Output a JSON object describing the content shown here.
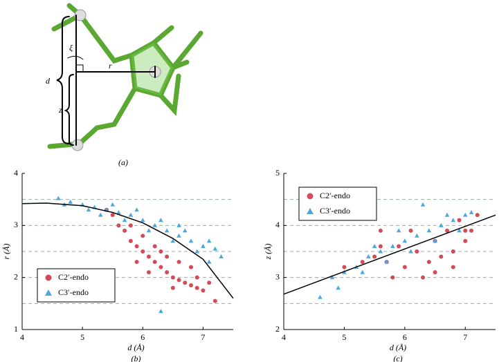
{
  "diagram": {
    "d_label": "d",
    "z_label": "z",
    "r_label": "r",
    "xi_label": "ξ",
    "caption": "(a)"
  },
  "chart_data": [
    {
      "type": "scatter",
      "caption": "(b)",
      "xlabel": "d (Å)",
      "ylabel": "r (Å)",
      "xlim": [
        4,
        7.5
      ],
      "xticks": [
        4,
        5,
        6,
        7
      ],
      "ylim": [
        1,
        4
      ],
      "yticks": [
        1,
        2,
        3,
        4
      ],
      "ygrid": [
        1.5,
        2,
        2.5,
        3,
        3.5
      ],
      "legend": "lower left",
      "series": [
        {
          "name": "C2′-endo",
          "color": "#d24b57",
          "marker": "circle",
          "x": [
            5.5,
            5.6,
            5.7,
            5.8,
            5.9,
            6.0,
            6.1,
            6.2,
            6.3,
            6.4,
            6.5,
            6.6,
            6.7,
            6.8,
            6.9,
            7.0,
            7.2,
            6.0,
            6.2,
            6.4,
            6.6,
            6.8,
            5.8,
            6.1,
            6.5,
            6.9,
            7.1,
            5.4,
            5.9,
            6.3
          ],
          "values": [
            3.2,
            3.0,
            2.9,
            2.7,
            2.6,
            2.5,
            2.4,
            2.3,
            2.2,
            2.1,
            2.0,
            1.95,
            1.9,
            1.85,
            1.8,
            1.75,
            1.55,
            2.8,
            2.6,
            2.4,
            2.3,
            2.2,
            3.0,
            2.1,
            1.8,
            2.0,
            1.9,
            3.3,
            2.3,
            2.5
          ]
        },
        {
          "name": "C3′-endo",
          "color": "#4ea8e0",
          "marker": "triangle",
          "x": [
            4.6,
            4.8,
            5.0,
            5.2,
            5.4,
            5.6,
            5.8,
            6.0,
            6.2,
            6.4,
            6.6,
            6.8,
            7.0,
            7.2,
            5.1,
            5.5,
            5.9,
            6.3,
            6.7,
            7.1,
            6.3,
            5.3,
            5.7,
            6.1,
            6.5,
            6.9,
            7.1,
            4.7,
            6.6,
            7.3
          ],
          "values": [
            3.52,
            3.45,
            3.4,
            3.35,
            3.3,
            3.25,
            3.2,
            3.1,
            3.0,
            2.9,
            2.8,
            2.7,
            2.6,
            2.55,
            3.3,
            3.4,
            3.3,
            3.1,
            2.9,
            2.7,
            1.35,
            3.2,
            3.1,
            2.9,
            2.7,
            2.5,
            2.3,
            3.4,
            3.0,
            2.4
          ]
        }
      ],
      "fit": {
        "color": "#000000",
        "x": [
          4,
          4.4,
          5,
          5.5,
          6,
          6.5,
          7,
          7.5
        ],
        "values": [
          3.42,
          3.43,
          3.38,
          3.25,
          3.05,
          2.75,
          2.35,
          1.6
        ]
      }
    },
    {
      "type": "scatter",
      "caption": "(c)",
      "xlabel": "d (Å)",
      "ylabel": "z (Å)",
      "xlim": [
        4,
        7.5
      ],
      "xticks": [
        4,
        5,
        6,
        7
      ],
      "ylim": [
        2,
        5
      ],
      "yticks": [
        2,
        3,
        4,
        5
      ],
      "ygrid": [
        2.5,
        3,
        3.5,
        4,
        4.5
      ],
      "legend": "upper left",
      "series": [
        {
          "name": "C2′-endo",
          "color": "#d24b57",
          "marker": "circle",
          "x": [
            5.0,
            5.3,
            5.5,
            5.7,
            5.9,
            6.0,
            6.2,
            6.4,
            6.5,
            6.6,
            6.8,
            7.0,
            7.1,
            6.7,
            6.9,
            7.2,
            5.8,
            6.3,
            5.6,
            5.6,
            6.1,
            6.8,
            7.0,
            6.5
          ],
          "values": [
            3.2,
            3.3,
            3.4,
            3.3,
            3.6,
            3.2,
            3.5,
            3.3,
            3.7,
            3.4,
            3.5,
            3.7,
            3.9,
            3.9,
            4.1,
            4.2,
            3.0,
            3.0,
            3.6,
            3.9,
            3.9,
            3.2,
            3.9,
            3.1
          ]
        },
        {
          "name": "C3′-endo",
          "color": "#4ea8e0",
          "marker": "triangle",
          "x": [
            4.6,
            4.8,
            5.0,
            5.2,
            5.4,
            5.6,
            5.8,
            6.0,
            6.2,
            6.4,
            6.6,
            6.8,
            7.0,
            7.1,
            6.3,
            4.9,
            5.3,
            5.7,
            6.1,
            6.5,
            6.9,
            5.5,
            5.9,
            6.7
          ],
          "values": [
            2.62,
            3.0,
            3.1,
            3.2,
            3.4,
            3.5,
            3.6,
            3.7,
            3.8,
            3.9,
            4.0,
            4.1,
            4.2,
            4.25,
            4.4,
            2.8,
            3.1,
            3.3,
            3.5,
            3.7,
            3.9,
            3.6,
            3.9,
            4.2
          ]
        }
      ],
      "fit": {
        "color": "#000000",
        "x": [
          4,
          7.5
        ],
        "values": [
          2.68,
          4.2
        ]
      }
    }
  ]
}
